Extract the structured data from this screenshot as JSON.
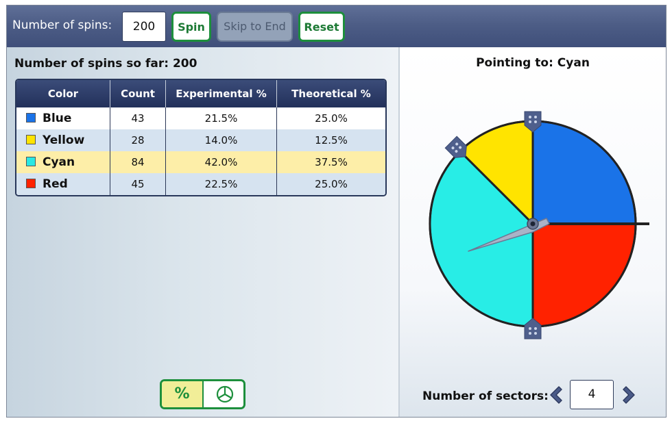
{
  "toolbar": {
    "spins_label": "Number of spins:",
    "spins_value": "200",
    "spin_label": "Spin",
    "skip_label": "Skip to End",
    "reset_label": "Reset"
  },
  "results": {
    "spins_so_far_label": "Number of spins so far: 200",
    "headers": [
      "Color",
      "Count",
      "Experimental %",
      "Theoretical %"
    ],
    "rows": [
      {
        "color": "Blue",
        "swatch": "#1a73e8",
        "count": "43",
        "experimental": "21.5%",
        "theoretical": "25.0%"
      },
      {
        "color": "Yellow",
        "swatch": "#ffe400",
        "count": "28",
        "experimental": "14.0%",
        "theoretical": "12.5%"
      },
      {
        "color": "Cyan",
        "swatch": "#28e8e3",
        "count": "84",
        "experimental": "42.0%",
        "theoretical": "37.5%"
      },
      {
        "color": "Red",
        "swatch": "#ff2200",
        "count": "45",
        "experimental": "22.5%",
        "theoretical": "25.0%"
      }
    ]
  },
  "view_toggle": {
    "percent_label": "%",
    "selected": "percent",
    "pie_icon": "pie-chart-icon"
  },
  "spinner": {
    "pointing_label": "Pointing to: Cyan",
    "sectors_label": "Number of sectors:",
    "sectors_value": "4",
    "sector_colors": {
      "blue": "#1a73e8",
      "yellow": "#ffe400",
      "cyan": "#28ede6",
      "red": "#ff2200"
    }
  },
  "colors": {
    "accent_green": "#1d8f3c",
    "header_navy": "#22305a",
    "highlight_row": "#fdeea8"
  }
}
